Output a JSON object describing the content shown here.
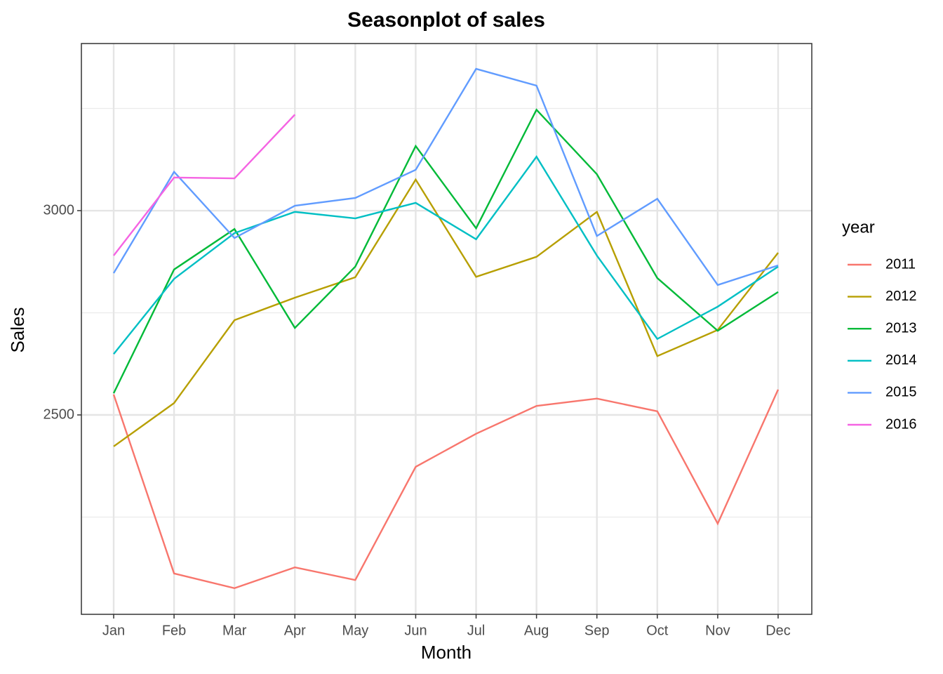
{
  "chart_data": {
    "type": "line",
    "title": "Seasonplot of sales",
    "x_label": "Month",
    "y_label": "Sales",
    "legend_title": "year",
    "categories": [
      "Jan",
      "Feb",
      "Mar",
      "Apr",
      "May",
      "Jun",
      "Jul",
      "Aug",
      "Sep",
      "Oct",
      "Nov",
      "Dec"
    ],
    "series": [
      {
        "name": "2011",
        "color": "#F8766D",
        "values": [
          2550,
          2112,
          2076,
          2127,
          2096,
          2373,
          2454,
          2522,
          2540,
          2509,
          2234,
          2562
        ]
      },
      {
        "name": "2012",
        "color": "#B79F00",
        "values": [
          2423,
          2529,
          2732,
          2787,
          2837,
          3076,
          2838,
          2887,
          2997,
          2644,
          2708,
          2897
        ]
      },
      {
        "name": "2013",
        "color": "#00BA38",
        "values": [
          2553,
          2856,
          2955,
          2713,
          2863,
          3158,
          2957,
          3247,
          3089,
          2835,
          2706,
          2801
        ]
      },
      {
        "name": "2014",
        "color": "#00BFC4",
        "values": [
          2649,
          2833,
          2945,
          2997,
          2981,
          3019,
          2930,
          3132,
          2890,
          2686,
          2765,
          2863
        ]
      },
      {
        "name": "2015",
        "color": "#619CFF",
        "values": [
          2847,
          3095,
          2933,
          3012,
          3031,
          3100,
          3347,
          3306,
          2938,
          3029,
          2818,
          2866
        ]
      },
      {
        "name": "2016",
        "color": "#F564E3",
        "values": [
          2890,
          3081,
          3079,
          3235,
          null,
          null,
          null,
          null,
          null,
          null,
          null,
          null
        ]
      }
    ],
    "ylim": [
      2012,
      3409
    ],
    "yticks": [
      2500,
      3000
    ],
    "yminor": [
      2250,
      2750,
      3250
    ],
    "grid": true,
    "legend": "right"
  }
}
